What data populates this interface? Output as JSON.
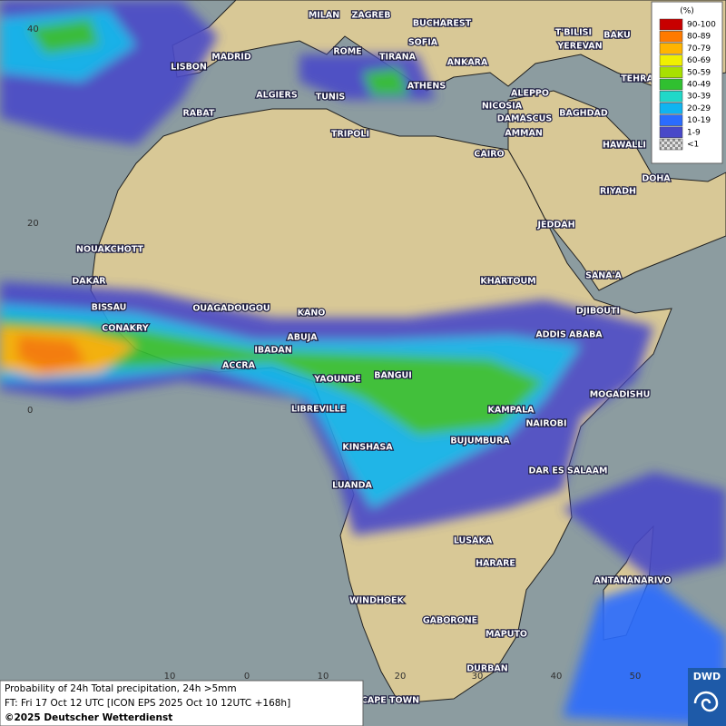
{
  "map": {
    "cities": [
      "LISBON",
      "MADRID",
      "MILAN",
      "ZAGREB",
      "BUCHAREST",
      "SOFIA",
      "ROME",
      "TIRANA",
      "ANKARA",
      "T'BILISI",
      "YEREVAN",
      "BAKU",
      "TEHRA",
      "ALGIERS",
      "TUNIS",
      "ATHENS",
      "ALEPPO",
      "NICOSIA",
      "BAGHDAD",
      "DAMASCUS",
      "AMMAN",
      "RABAT",
      "TRIPOLI",
      "CAIRO",
      "HAWALLI",
      "DOHA",
      "RIYADH",
      "JEDDAH",
      "NOUAKCHOTT",
      "DAKAR",
      "BISSAU",
      "KHARTOUM",
      "SANA'A",
      "DJIBOUTI",
      "OUAGADOUGOU",
      "KANO",
      "CONAKRY",
      "ABUJA",
      "ADDIS ABABA",
      "IBADAN",
      "ACCRA",
      "YAOUNDE",
      "BANGUI",
      "MOGADISHU",
      "LIBREVILLE",
      "KAMPALA",
      "NAIROBI",
      "KINSHASA",
      "BUJUMBURA",
      "DAR ES SALAAM",
      "LUANDA",
      "LUSAKA",
      "HARARE",
      "ANTANANARIVO",
      "WINDHOEK",
      "GABORONE",
      "MAPUTO",
      "DURBAN",
      "CAPE TOWN"
    ],
    "latitude_labels": [
      "40",
      "20",
      "0"
    ],
    "longitude_labels": [
      "10",
      "0",
      "10",
      "20",
      "30",
      "40",
      "50"
    ]
  },
  "legend": {
    "title": "(%)",
    "entries": [
      {
        "label": "90-100",
        "color": "#c80000"
      },
      {
        "label": "80-89",
        "color": "#ff7a00"
      },
      {
        "label": "70-79",
        "color": "#ffb400"
      },
      {
        "label": "60-69",
        "color": "#f0f000"
      },
      {
        "label": "50-59",
        "color": "#a8e000"
      },
      {
        "label": "40-49",
        "color": "#30c030"
      },
      {
        "label": "30-39",
        "color": "#20d8c8"
      },
      {
        "label": "20-29",
        "color": "#10b4f0"
      },
      {
        "label": "10-19",
        "color": "#2a6cff"
      },
      {
        "label": "1-9",
        "color": "#4848c8"
      },
      {
        "label": "<1",
        "color": "#b0b0b0"
      }
    ]
  },
  "caption": {
    "lines": [
      "Probability of 24h Total precipitation, 24h >5mm",
      "FT: Fri 17 Oct 12 UTC [ICON EPS 2025 Oct 10 12UTC +168h]",
      "©2025 Deutscher Wetterdienst"
    ]
  },
  "logo": "DWD"
}
